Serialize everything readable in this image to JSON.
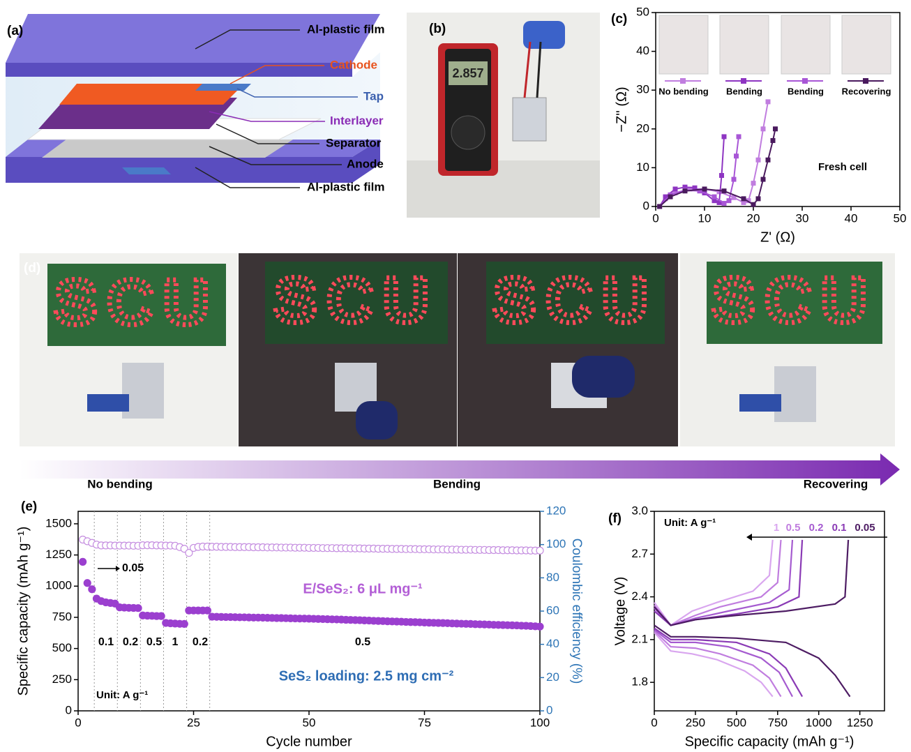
{
  "panels": {
    "a": {
      "label": "(a)",
      "layers": [
        "Al-plastic film",
        "Cathode",
        "Tap",
        "Interlayer",
        "Separator",
        "Anode",
        "Al-plastic film"
      ]
    },
    "b": {
      "label": "(b)",
      "reading": "2.857"
    },
    "d": {
      "label": "(d)",
      "board_text": "SCU",
      "stages": [
        "No bending",
        "Bending",
        "Recovering"
      ]
    }
  },
  "chart_data": [
    {
      "type": "line",
      "panel_label": "(c)",
      "xlabel": "Z' (Ω)",
      "ylabel": "−Z'' (Ω)",
      "annotation": "Fresh cell",
      "xlim": [
        0,
        50
      ],
      "ylim": [
        0,
        50
      ],
      "xticks": [
        0,
        10,
        20,
        30,
        40,
        50
      ],
      "yticks": [
        0,
        10,
        20,
        30,
        40,
        50
      ],
      "series": [
        {
          "name": "No bending",
          "color": "#c07ddf",
          "x": [
            0.8,
            2,
            4,
            7,
            10,
            13,
            16,
            18,
            19,
            20,
            21,
            22,
            23
          ],
          "values": [
            0,
            2,
            3.5,
            4.5,
            4.5,
            3.8,
            2.3,
            1,
            1.5,
            6,
            12,
            20,
            27
          ]
        },
        {
          "name": "Bending",
          "color": "#8e35c2",
          "x": [
            0.8,
            2,
            4,
            6,
            8,
            10,
            12,
            13,
            13.5,
            14
          ],
          "values": [
            0,
            2.5,
            4.5,
            5,
            4.8,
            3.5,
            1.5,
            1,
            8,
            18
          ]
        },
        {
          "name": "Bending",
          "color": "#a856d6",
          "x": [
            0.8,
            3,
            6,
            9,
            12,
            14,
            15,
            16,
            16.5,
            17
          ],
          "values": [
            0,
            3,
            4.2,
            4,
            2.5,
            0.8,
            1.5,
            7,
            13,
            18
          ]
        },
        {
          "name": "Recovering",
          "color": "#4a1a5e",
          "x": [
            0.8,
            3,
            6,
            10,
            14,
            18,
            20,
            21,
            22,
            23,
            24,
            24.5
          ],
          "values": [
            0,
            2.5,
            4,
            4.5,
            4,
            2,
            0.5,
            2,
            7,
            12,
            17,
            20
          ]
        }
      ]
    },
    {
      "type": "scatter",
      "panel_label": "(e)",
      "xlabel": "Cycle number",
      "ylabel": "Specific capacity (mAh g⁻¹)",
      "y2label": "Coulombic efficiency (%)",
      "xlim": [
        0,
        100
      ],
      "ylim": [
        0,
        1600
      ],
      "y2lim": [
        0,
        120
      ],
      "xticks": [
        0,
        25,
        50,
        75,
        100
      ],
      "yticks": [
        0,
        250,
        500,
        750,
        1000,
        1250,
        1500
      ],
      "y2ticks": [
        0,
        20,
        40,
        60,
        80,
        100,
        120
      ],
      "vlines": [
        3.5,
        8.5,
        13.5,
        18.5,
        23.5,
        28.5
      ],
      "rate_labels": [
        "0.05",
        "0.1",
        "0.2",
        "0.5",
        "1",
        "0.2",
        "0.5"
      ],
      "annotations": [
        "Unit: A g⁻¹",
        "E/SeS₂: 6 μL mg⁻¹",
        "SeS₂ loading: 2.5 mg cm⁻²"
      ],
      "x": [
        1,
        2,
        3,
        4,
        5,
        6,
        7,
        8,
        9,
        10,
        11,
        12,
        13,
        14,
        15,
        16,
        17,
        18,
        19,
        20,
        21,
        22,
        23,
        24,
        25,
        26,
        27,
        28,
        29,
        30,
        31,
        32,
        33,
        34,
        35,
        36,
        37,
        38,
        39,
        40,
        41,
        42,
        43,
        44,
        45,
        46,
        47,
        48,
        49,
        50,
        51,
        52,
        53,
        54,
        55,
        56,
        57,
        58,
        59,
        60,
        61,
        62,
        63,
        64,
        65,
        66,
        67,
        68,
        69,
        70,
        71,
        72,
        73,
        74,
        75,
        76,
        77,
        78,
        79,
        80,
        81,
        82,
        83,
        84,
        85,
        86,
        87,
        88,
        89,
        90,
        91,
        92,
        93,
        94,
        95,
        96,
        97,
        98,
        99,
        100
      ],
      "series": [
        {
          "color": "#9b3fcf",
          "values": [
            1195,
            1025,
            975,
            900,
            880,
            870,
            865,
            860,
            830,
            828,
            826,
            825,
            824,
            765,
            763,
            762,
            760,
            760,
            705,
            702,
            700,
            698,
            697,
            805,
            805,
            805,
            805,
            805,
            755,
            754,
            753,
            752,
            752,
            751,
            750,
            750,
            749,
            748,
            748,
            747,
            746,
            745,
            744,
            744,
            743,
            742,
            741,
            740,
            740,
            739,
            738,
            737,
            736,
            735,
            734,
            733,
            732,
            730,
            729,
            728,
            727,
            725,
            724,
            722,
            721,
            720,
            718,
            717,
            716,
            715,
            713,
            712,
            711,
            710,
            708,
            707,
            706,
            705,
            704,
            703,
            701,
            700,
            699,
            698,
            697,
            695,
            694,
            693,
            692,
            690,
            689,
            688,
            687,
            686,
            685,
            683,
            682,
            680,
            678,
            676
          ]
        },
        {
          "color": "#c58ee0",
          "axis": "y2",
          "values": [
            103,
            102,
            101,
            100,
            99.5,
            99.5,
            99.5,
            99.4,
            99.4,
            99.4,
            99.4,
            99.3,
            99.3,
            99.6,
            99.6,
            99.6,
            99.5,
            99.5,
            99.4,
            99.4,
            99.3,
            98.5,
            97.5,
            95,
            98,
            98.6,
            98.8,
            98.8,
            98.7,
            98.7,
            98.6,
            98.6,
            98.6,
            98.5,
            98.5,
            98.5,
            98.5,
            98.4,
            98.4,
            98.4,
            98.3,
            98.3,
            98.3,
            98.2,
            98.2,
            98.2,
            98.1,
            98.1,
            98.1,
            98,
            98,
            98,
            97.9,
            97.9,
            97.9,
            97.8,
            97.8,
            97.8,
            97.7,
            97.7,
            97.7,
            97.6,
            97.6,
            97.6,
            97.5,
            97.5,
            97.5,
            97.4,
            97.4,
            97.4,
            97.3,
            97.3,
            97.3,
            97.2,
            97.2,
            97.2,
            97.1,
            97.1,
            97.1,
            97,
            97,
            97,
            96.9,
            96.9,
            96.9,
            96.8,
            96.8,
            96.8,
            96.7,
            96.7,
            96.7,
            96.6,
            96.6,
            96.6,
            96.5,
            96.5,
            96.5,
            96.4,
            96.4,
            96.4
          ]
        }
      ]
    },
    {
      "type": "profile",
      "panel_label": "(f)",
      "xlabel": "Specific capacity (mAh g⁻¹)",
      "ylabel": "Voltage (V)",
      "annotation": "Unit: A g⁻¹",
      "xlim": [
        0,
        1400
      ],
      "ylim": [
        1.6,
        3.0
      ],
      "xticks": [
        0,
        250,
        500,
        750,
        1000,
        1250
      ],
      "yticks": [
        {
          "value": 1.8,
          "label": "1.8"
        },
        {
          "value": 2.1,
          "label": "2.1"
        },
        {
          "value": 2.4,
          "label": "2.4"
        },
        {
          "value": 2.7,
          "label": "2.7"
        },
        {
          "value": 3.0,
          "label": "3.0"
        }
      ],
      "series": [
        {
          "name": "1",
          "color": "#d9a6ef",
          "discharge": {
            "x": [
              0,
              100,
              230,
              380,
              550,
              650,
              720
            ],
            "values": [
              2.15,
              2.02,
              2.0,
              1.96,
              1.88,
              1.8,
              1.7
            ]
          },
          "charge": {
            "x": [
              0,
              100,
              230,
              380,
              600,
              700,
              720
            ],
            "values": [
              2.36,
              2.2,
              2.3,
              2.36,
              2.44,
              2.55,
              2.8
            ]
          }
        },
        {
          "name": "0.5",
          "color": "#c07ddf",
          "discharge": {
            "x": [
              0,
              100,
              250,
              400,
              600,
              700,
              770
            ],
            "values": [
              2.16,
              2.05,
              2.04,
              2.0,
              1.92,
              1.83,
              1.7
            ]
          },
          "charge": {
            "x": [
              0,
              100,
              250,
              400,
              650,
              750,
              770
            ],
            "values": [
              2.34,
              2.2,
              2.27,
              2.33,
              2.4,
              2.5,
              2.8
            ]
          }
        },
        {
          "name": "0.2",
          "color": "#a55bd0",
          "discharge": {
            "x": [
              0,
              100,
              250,
              450,
              650,
              760,
              840
            ],
            "values": [
              2.17,
              2.08,
              2.08,
              2.05,
              1.97,
              1.87,
              1.7
            ]
          },
          "charge": {
            "x": [
              0,
              100,
              250,
              450,
              700,
              820,
              840
            ],
            "values": [
              2.32,
              2.2,
              2.25,
              2.3,
              2.36,
              2.45,
              2.8
            ]
          }
        },
        {
          "name": "0.1",
          "color": "#8a3ab5",
          "discharge": {
            "x": [
              0,
              100,
              250,
              500,
              700,
              800,
              900
            ],
            "values": [
              2.18,
              2.1,
              2.1,
              2.08,
              2.0,
              1.9,
              1.7
            ]
          },
          "charge": {
            "x": [
              0,
              100,
              250,
              500,
              750,
              880,
              900
            ],
            "values": [
              2.3,
              2.2,
              2.24,
              2.28,
              2.33,
              2.4,
              2.8
            ]
          }
        },
        {
          "name": "0.05",
          "color": "#4d1c63",
          "discharge": {
            "x": [
              0,
              100,
              250,
              500,
              800,
              1000,
              1100,
              1190
            ],
            "values": [
              2.2,
              2.12,
              2.12,
              2.11,
              2.08,
              1.97,
              1.85,
              1.7
            ]
          },
          "charge": {
            "x": [
              0,
              100,
              250,
              500,
              800,
              1100,
              1160,
              1180
            ],
            "values": [
              2.33,
              2.2,
              2.24,
              2.27,
              2.3,
              2.35,
              2.4,
              2.8
            ]
          }
        }
      ]
    }
  ]
}
